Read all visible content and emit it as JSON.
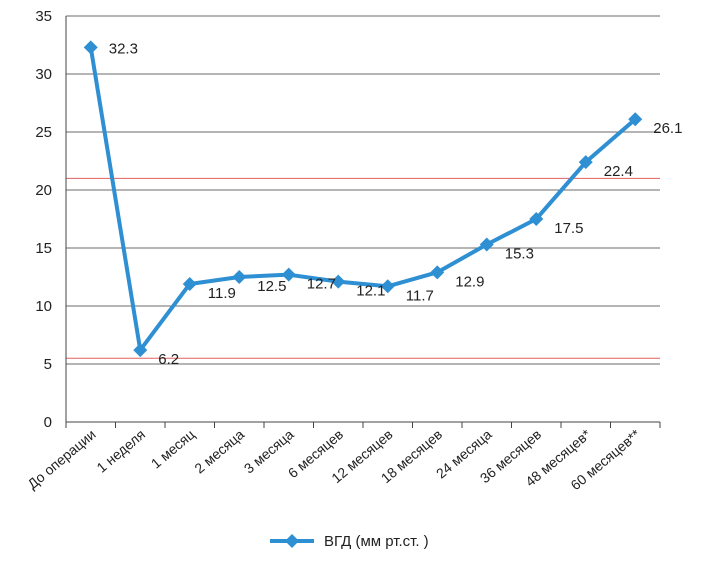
{
  "chart_data": {
    "type": "line",
    "title": "",
    "xlabel": "",
    "ylabel": "",
    "ylim": [
      0,
      35
    ],
    "yticks": [
      0,
      5,
      10,
      15,
      20,
      25,
      30,
      35
    ],
    "grid": true,
    "legend_position": "bottom",
    "categories": [
      "До операции",
      "1 неделя",
      "1 месяц",
      "2 месяца",
      "3 месяца",
      "6 месяцев",
      "12 месяцев",
      "18 месяцев",
      "24 месяца",
      "36 месяцев",
      "48 месяцев*",
      "60 месяцев**"
    ],
    "series": [
      {
        "name": "ВГД (мм рт.ст. )",
        "color": "#2e8fd3",
        "marker": "diamond",
        "values": [
          32.3,
          6.2,
          11.9,
          12.5,
          12.7,
          12.1,
          11.7,
          12.9,
          15.3,
          17.5,
          22.4,
          26.1
        ],
        "labels": [
          "32.3",
          "6.2",
          "11.9",
          "12.5",
          "12.7",
          "12.1",
          "11.7",
          "12.9",
          "15.3",
          "17.5",
          "22.4",
          "26.1"
        ]
      }
    ],
    "reference_lines": [
      {
        "value": 21,
        "color": "#e06060"
      },
      {
        "value": 5.5,
        "color": "#e06060"
      }
    ],
    "grid_color": "#6b6b6b"
  }
}
